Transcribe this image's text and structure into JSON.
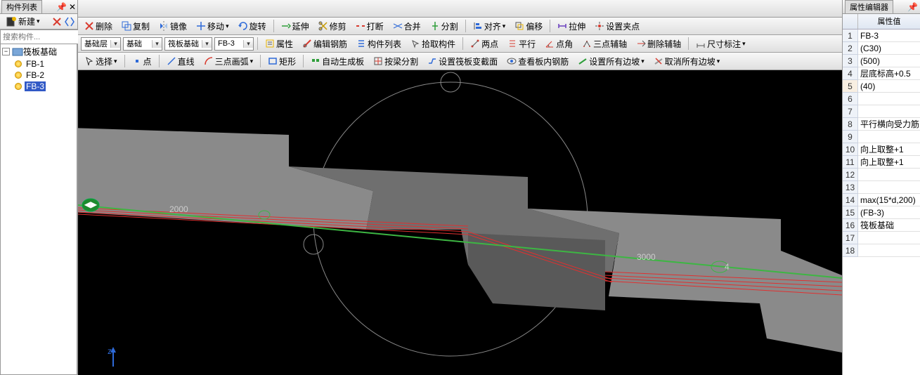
{
  "leftPanel": {
    "title": "构件列表",
    "newBtn": "新建",
    "searchPlaceholder": "搜索构件...",
    "tree": {
      "root": "筏板基础",
      "items": [
        {
          "label": "FB-1"
        },
        {
          "label": "FB-2"
        },
        {
          "label": "FB-3",
          "selected": true
        }
      ]
    }
  },
  "toolbar1": {
    "delete": "删除",
    "copy": "复制",
    "mirror": "镜像",
    "move": "移动",
    "rotate": "旋转",
    "extend": "延伸",
    "trim": "修剪",
    "align": "打断",
    "merge": "合并",
    "split": "分割",
    "alignTo": "对齐",
    "offset": "偏移",
    "stretch": "拉伸",
    "setGrip": "设置夹点"
  },
  "combos": {
    "layer": "基础层",
    "type": "基础",
    "sub": "筏板基础",
    "code": "FB-3"
  },
  "toolbar2": {
    "prop": "属性",
    "editBar": "编辑钢筋",
    "compList": "构件列表",
    "pickComp": "拾取构件",
    "twoPt": "两点",
    "parallel": "平行",
    "ptAngle": "点角",
    "threeAxis": "三点辅轴",
    "delAxis": "删除辅轴",
    "dim": "尺寸标注"
  },
  "toolbar3": {
    "select": "选择",
    "point": "点",
    "line": "直线",
    "arc3pt": "三点画弧",
    "rect": "矩形",
    "autoSlab": "自动生成板",
    "beamSplit": "按梁分割",
    "changeSection": "设置筏板变截面",
    "viewRebar": "查看板内钢筋",
    "setAllSlope": "设置所有边坡",
    "cancelAllSlope": "取消所有边坡"
  },
  "viewport": {
    "dimA": "2000",
    "dimB": "3000",
    "marker": "4",
    "axisZ": "z",
    "shapes": {
      "color": "#808080",
      "lineGreen": "#3db643",
      "lineRed": "#e03030",
      "circles": "#a0a0a0"
    }
  },
  "propPanel": {
    "title": "属性编辑器",
    "colLabel": "属性值",
    "rows": [
      "FB-3",
      "(C30)",
      "(500)",
      "层底标高+0.5",
      "(40)",
      "",
      "",
      "平行横向受力筋",
      "",
      "向上取整+1",
      "向上取整+1",
      "",
      "",
      "max(15*d,200)",
      "(FB-3)",
      "筏板基础",
      "",
      ""
    ],
    "selectedRow": 5
  }
}
